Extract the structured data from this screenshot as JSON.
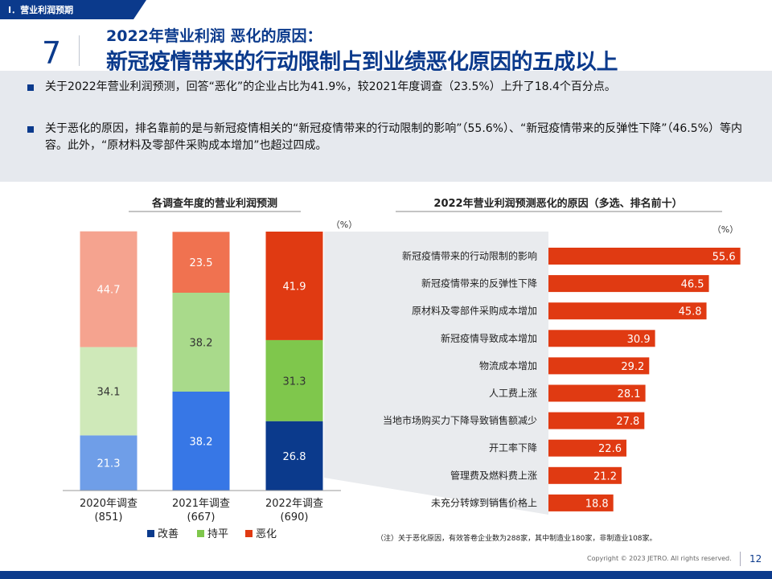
{
  "header": {
    "section_tag": "Ⅰ．营业利润预期",
    "page_number": "7",
    "subtitle": "2022年营业利润  恶化的原因：",
    "title": "新冠疫情带来的行动限制占到业绩恶化原因的五成以上"
  },
  "summary": {
    "bullets": [
      "关于2022年营业利润预测，回答“恶化”的企业占比为41.9%，较2021年度调查（23.5%）上升了18.4个百分点。",
      "关于恶化的原因，排名靠前的是与新冠疫情相关的“新冠疫情带来的行动限制的影响”（55.6%）、“新冠疫情带来的反弹性下降”（46.5%）等内容。此外，“原材料及零部件采购成本增加”也超过四成。"
    ]
  },
  "chart_data": [
    {
      "type": "bar",
      "stacked": true,
      "title": "各调查年度的营业利润预测",
      "unit": "（%）",
      "categories": [
        "2020年调查",
        "2021年调查",
        "2022年调查"
      ],
      "category_counts": [
        "(851)",
        "(667)",
        "(690)"
      ],
      "series": [
        {
          "name": "改善",
          "values": [
            21.3,
            38.2,
            26.8
          ],
          "colors": [
            "#6f9ee8",
            "#3777e6",
            "#0b3a8c"
          ]
        },
        {
          "name": "持平",
          "values": [
            34.1,
            38.2,
            31.3
          ],
          "colors": [
            "#cfe9b9",
            "#a9da8b",
            "#7fc74c"
          ]
        },
        {
          "name": "恶化",
          "values": [
            44.7,
            23.5,
            41.9
          ],
          "colors": [
            "#f5a38f",
            "#f07250",
            "#e03a12"
          ]
        }
      ],
      "legend_colors": [
        "#0b3a8c",
        "#7fc74c",
        "#e03a12"
      ],
      "legend_position": "bottom",
      "ylim": [
        0,
        100
      ]
    },
    {
      "type": "bar",
      "orientation": "horizontal",
      "title": "2022年营业利润预测恶化的原因（多选、排名前十）",
      "unit": "（%）",
      "categories": [
        "新冠疫情带来的行动限制的影响",
        "新冠疫情带来的反弹性下降",
        "原材料及零部件采购成本增加",
        "新冠疫情导致成本增加",
        "物流成本增加",
        "人工费上涨",
        "当地市场购买力下降导致销售额减少",
        "开工率下降",
        "管理费及燃料费上涨",
        "未充分转嫁到销售价格上"
      ],
      "values": [
        55.6,
        46.5,
        45.8,
        30.9,
        29.2,
        28.1,
        27.8,
        22.6,
        21.2,
        18.8
      ],
      "color": "#e03a12",
      "xlim": [
        0,
        60
      ]
    }
  ],
  "note": "（注）关于恶化原因，有效答卷企业数为288家，其中制造业180家，非制造业108家。",
  "footer": {
    "copyright": "Copyright © 2023 JETRO. All rights reserved.",
    "page": "12"
  },
  "colors": {
    "brand_blue": "#0b3a8c",
    "summary_bg": "#e6e9ee",
    "callout_bg": "#e9ebee"
  }
}
